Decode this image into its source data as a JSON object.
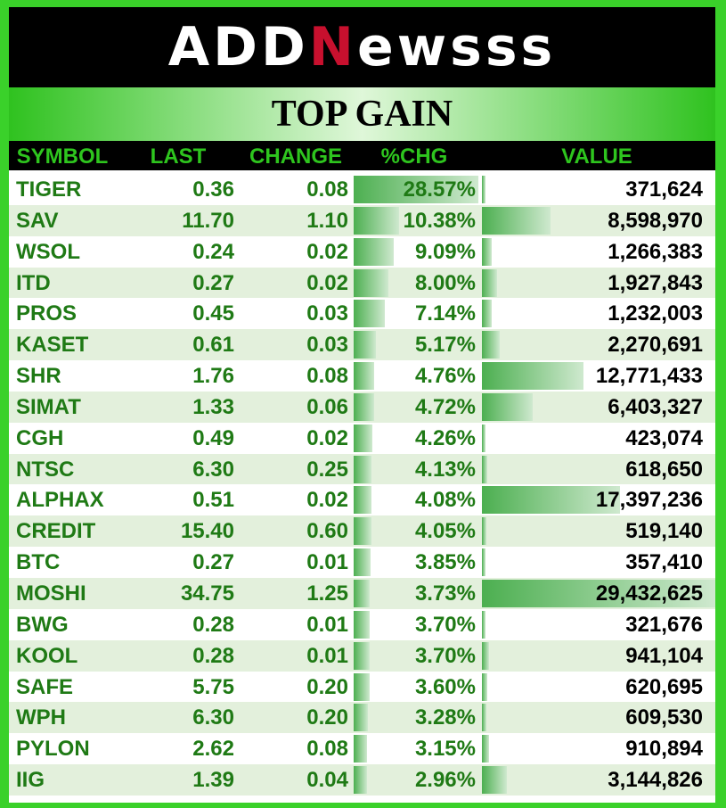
{
  "brand": {
    "part1": "ADD",
    "accent": "N",
    "part2": "ewsss"
  },
  "title": "TOP GAIN",
  "columns": [
    "SYMBOL",
    "LAST",
    "CHANGE",
    "%CHG",
    "VALUE"
  ],
  "rows": [
    {
      "symbol": "TIGER",
      "last": "0.36",
      "change": "0.08",
      "pct": "28.57%",
      "value": "371,624",
      "pct_num": 28.57,
      "value_num": 371624
    },
    {
      "symbol": "SAV",
      "last": "11.70",
      "change": "1.10",
      "pct": "10.38%",
      "value": "8,598,970",
      "pct_num": 10.38,
      "value_num": 8598970
    },
    {
      "symbol": "WSOL",
      "last": "0.24",
      "change": "0.02",
      "pct": "9.09%",
      "value": "1,266,383",
      "pct_num": 9.09,
      "value_num": 1266383
    },
    {
      "symbol": "ITD",
      "last": "0.27",
      "change": "0.02",
      "pct": "8.00%",
      "value": "1,927,843",
      "pct_num": 8.0,
      "value_num": 1927843
    },
    {
      "symbol": "PROS",
      "last": "0.45",
      "change": "0.03",
      "pct": "7.14%",
      "value": "1,232,003",
      "pct_num": 7.14,
      "value_num": 1232003
    },
    {
      "symbol": "KASET",
      "last": "0.61",
      "change": "0.03",
      "pct": "5.17%",
      "value": "2,270,691",
      "pct_num": 5.17,
      "value_num": 2270691
    },
    {
      "symbol": "SHR",
      "last": "1.76",
      "change": "0.08",
      "pct": "4.76%",
      "value": "12,771,433",
      "pct_num": 4.76,
      "value_num": 12771433
    },
    {
      "symbol": "SIMAT",
      "last": "1.33",
      "change": "0.06",
      "pct": "4.72%",
      "value": "6,403,327",
      "pct_num": 4.72,
      "value_num": 6403327
    },
    {
      "symbol": "CGH",
      "last": "0.49",
      "change": "0.02",
      "pct": "4.26%",
      "value": "423,074",
      "pct_num": 4.26,
      "value_num": 423074
    },
    {
      "symbol": "NTSC",
      "last": "6.30",
      "change": "0.25",
      "pct": "4.13%",
      "value": "618,650",
      "pct_num": 4.13,
      "value_num": 618650
    },
    {
      "symbol": "ALPHAX",
      "last": "0.51",
      "change": "0.02",
      "pct": "4.08%",
      "value": "17,397,236",
      "pct_num": 4.08,
      "value_num": 17397236
    },
    {
      "symbol": "CREDIT",
      "last": "15.40",
      "change": "0.60",
      "pct": "4.05%",
      "value": "519,140",
      "pct_num": 4.05,
      "value_num": 519140
    },
    {
      "symbol": "BTC",
      "last": "0.27",
      "change": "0.01",
      "pct": "3.85%",
      "value": "357,410",
      "pct_num": 3.85,
      "value_num": 357410
    },
    {
      "symbol": "MOSHI",
      "last": "34.75",
      "change": "1.25",
      "pct": "3.73%",
      "value": "29,432,625",
      "pct_num": 3.73,
      "value_num": 29432625
    },
    {
      "symbol": "BWG",
      "last": "0.28",
      "change": "0.01",
      "pct": "3.70%",
      "value": "321,676",
      "pct_num": 3.7,
      "value_num": 321676
    },
    {
      "symbol": "KOOL",
      "last": "0.28",
      "change": "0.01",
      "pct": "3.70%",
      "value": "941,104",
      "pct_num": 3.7,
      "value_num": 941104
    },
    {
      "symbol": "SAFE",
      "last": "5.75",
      "change": "0.20",
      "pct": "3.60%",
      "value": "620,695",
      "pct_num": 3.6,
      "value_num": 620695
    },
    {
      "symbol": "WPH",
      "last": "6.30",
      "change": "0.20",
      "pct": "3.28%",
      "value": "609,530",
      "pct_num": 3.28,
      "value_num": 609530
    },
    {
      "symbol": "PYLON",
      "last": "2.62",
      "change": "0.08",
      "pct": "3.15%",
      "value": "910,894",
      "pct_num": 3.15,
      "value_num": 910894
    },
    {
      "symbol": "IIG",
      "last": "1.39",
      "change": "0.04",
      "pct": "2.96%",
      "value": "3,144,826",
      "pct_num": 2.96,
      "value_num": 3144826
    }
  ],
  "colors": {
    "background": "#3ad12a",
    "header_text": "#2ec51e",
    "cell_text": "#1f7a15",
    "brand_accent": "#c8102e"
  }
}
